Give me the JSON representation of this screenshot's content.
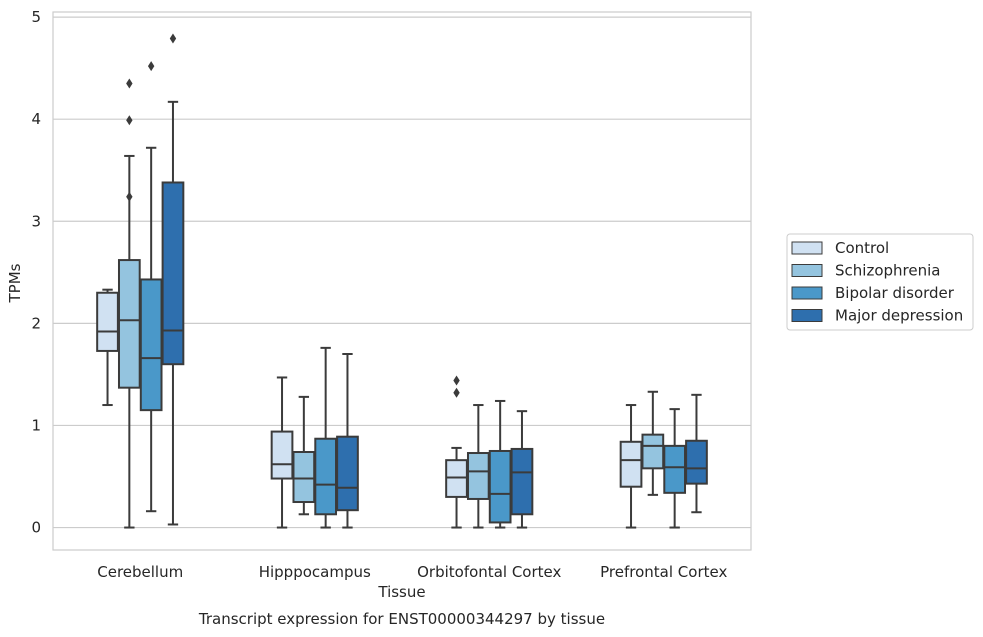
{
  "chart_data": {
    "type": "boxplot",
    "title": "",
    "caption": "Transcript expression for ENST00000344297 by tissue",
    "xlabel": "Tissue",
    "ylabel": "TPMs",
    "ylim": [
      -0.22,
      5.05
    ],
    "yticks": [
      0,
      1,
      2,
      3,
      4,
      5
    ],
    "grid": true,
    "legend_position": "right",
    "categories": [
      "Cerebellum",
      "Hipppocampus",
      "Orbitofontal Cortex",
      "Prefrontal Cortex"
    ],
    "series": [
      {
        "name": "Control",
        "color": "#d0e1f2",
        "boxes": [
          {
            "whislo": 1.2,
            "q1": 1.73,
            "med": 1.92,
            "q3": 2.3,
            "whishi": 2.33,
            "fliers": []
          },
          {
            "whislo": 0.0,
            "q1": 0.48,
            "med": 0.62,
            "q3": 0.94,
            "whishi": 1.47,
            "fliers": []
          },
          {
            "whislo": 0.0,
            "q1": 0.3,
            "med": 0.49,
            "q3": 0.66,
            "whishi": 0.78,
            "fliers": [
              1.32,
              1.44
            ]
          },
          {
            "whislo": 0.0,
            "q1": 0.4,
            "med": 0.66,
            "q3": 0.84,
            "whishi": 1.2,
            "fliers": []
          }
        ]
      },
      {
        "name": "Schizophrenia",
        "color": "#94c4df",
        "boxes": [
          {
            "whislo": 0.0,
            "q1": 1.37,
            "med": 2.03,
            "q3": 2.62,
            "whishi": 3.64,
            "fliers": [
              3.24,
              3.99,
              4.35
            ]
          },
          {
            "whislo": 0.13,
            "q1": 0.25,
            "med": 0.48,
            "q3": 0.74,
            "whishi": 1.28,
            "fliers": []
          },
          {
            "whislo": 0.0,
            "q1": 0.28,
            "med": 0.55,
            "q3": 0.73,
            "whishi": 1.2,
            "fliers": []
          },
          {
            "whislo": 0.32,
            "q1": 0.58,
            "med": 0.8,
            "q3": 0.91,
            "whishi": 1.33,
            "fliers": []
          }
        ]
      },
      {
        "name": "Bipolar disorder",
        "color": "#4a98c9",
        "boxes": [
          {
            "whislo": 0.16,
            "q1": 1.15,
            "med": 1.66,
            "q3": 2.43,
            "whishi": 3.72,
            "fliers": [
              4.52
            ]
          },
          {
            "whislo": 0.0,
            "q1": 0.13,
            "med": 0.42,
            "q3": 0.87,
            "whishi": 1.76,
            "fliers": []
          },
          {
            "whislo": 0.0,
            "q1": 0.05,
            "med": 0.33,
            "q3": 0.75,
            "whishi": 1.24,
            "fliers": []
          },
          {
            "whislo": 0.0,
            "q1": 0.34,
            "med": 0.59,
            "q3": 0.8,
            "whishi": 1.16,
            "fliers": []
          }
        ]
      },
      {
        "name": "Major depression",
        "color": "#2e6fae",
        "boxes": [
          {
            "whislo": 0.03,
            "q1": 1.6,
            "med": 1.93,
            "q3": 3.38,
            "whishi": 4.17,
            "fliers": [
              4.79
            ]
          },
          {
            "whislo": 0.0,
            "q1": 0.17,
            "med": 0.39,
            "q3": 0.89,
            "whishi": 1.7,
            "fliers": []
          },
          {
            "whislo": 0.0,
            "q1": 0.13,
            "med": 0.54,
            "q3": 0.77,
            "whishi": 1.14,
            "fliers": []
          },
          {
            "whislo": 0.15,
            "q1": 0.43,
            "med": 0.58,
            "q3": 0.85,
            "whishi": 1.3,
            "fliers": []
          }
        ]
      }
    ]
  }
}
